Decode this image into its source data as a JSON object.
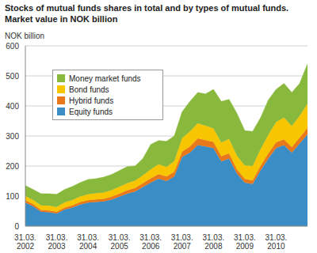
{
  "chart_data": {
    "type": "area",
    "stacked": true,
    "grid": true,
    "legend": "upper left",
    "title": "Stocks of mutual funds shares in total and by types of  mutual funds.",
    "subtitle": "Market value in NOK billion",
    "y_label": "NOK billion",
    "categories": [
      "31.03. 2002",
      null,
      null,
      null,
      "31.03. 2003",
      null,
      null,
      null,
      "31.03. 2004",
      null,
      null,
      null,
      "31.03. 2005",
      null,
      null,
      null,
      "31.03. 2006",
      null,
      null,
      null,
      "31.03. 2007",
      null,
      null,
      null,
      "31.03. 2008",
      null,
      null,
      null,
      "31.03. 2009",
      null,
      null,
      null,
      "31.03. 2010",
      null,
      null,
      null,
      null
    ],
    "ylim": [
      0,
      600
    ],
    "yticks": [
      0,
      100,
      200,
      300,
      400,
      500,
      600
    ],
    "series": [
      {
        "name": "Equity funds",
        "color": "#3b8dc6",
        "values": [
          78,
          66,
          48,
          46,
          42,
          55,
          62,
          72,
          78,
          80,
          82,
          88,
          98,
          108,
          115,
          130,
          145,
          158,
          150,
          165,
          230,
          245,
          270,
          265,
          260,
          215,
          225,
          175,
          145,
          140,
          185,
          225,
          260,
          270,
          245,
          275,
          305
        ]
      },
      {
        "name": "Hybrid funds",
        "color": "#e8781a",
        "values": [
          8,
          7,
          6,
          6,
          6,
          7,
          7,
          8,
          8,
          9,
          9,
          10,
          10,
          11,
          12,
          13,
          14,
          15,
          15,
          16,
          18,
          20,
          22,
          21,
          20,
          18,
          17,
          14,
          12,
          12,
          15,
          17,
          19,
          19,
          18,
          20,
          22
        ]
      },
      {
        "name": "Bond funds",
        "color": "#f7c600",
        "values": [
          14,
          14,
          15,
          16,
          16,
          17,
          18,
          19,
          20,
          20,
          21,
          22,
          23,
          24,
          24,
          26,
          30,
          33,
          32,
          35,
          45,
          50,
          50,
          48,
          45,
          45,
          48,
          45,
          45,
          48,
          55,
          62,
          68,
          72,
          70,
          72,
          80
        ]
      },
      {
        "name": "Money market funds",
        "color": "#88b83c",
        "values": [
          35,
          35,
          39,
          40,
          42,
          43,
          45,
          46,
          49,
          49,
          51,
          52,
          54,
          55,
          49,
          56,
          83,
          79,
          85,
          84,
          87,
          100,
          103,
          106,
          130,
          137,
          132,
          141,
          116,
          115,
          105,
          116,
          108,
          114,
          112,
          108,
          133
        ]
      }
    ]
  }
}
